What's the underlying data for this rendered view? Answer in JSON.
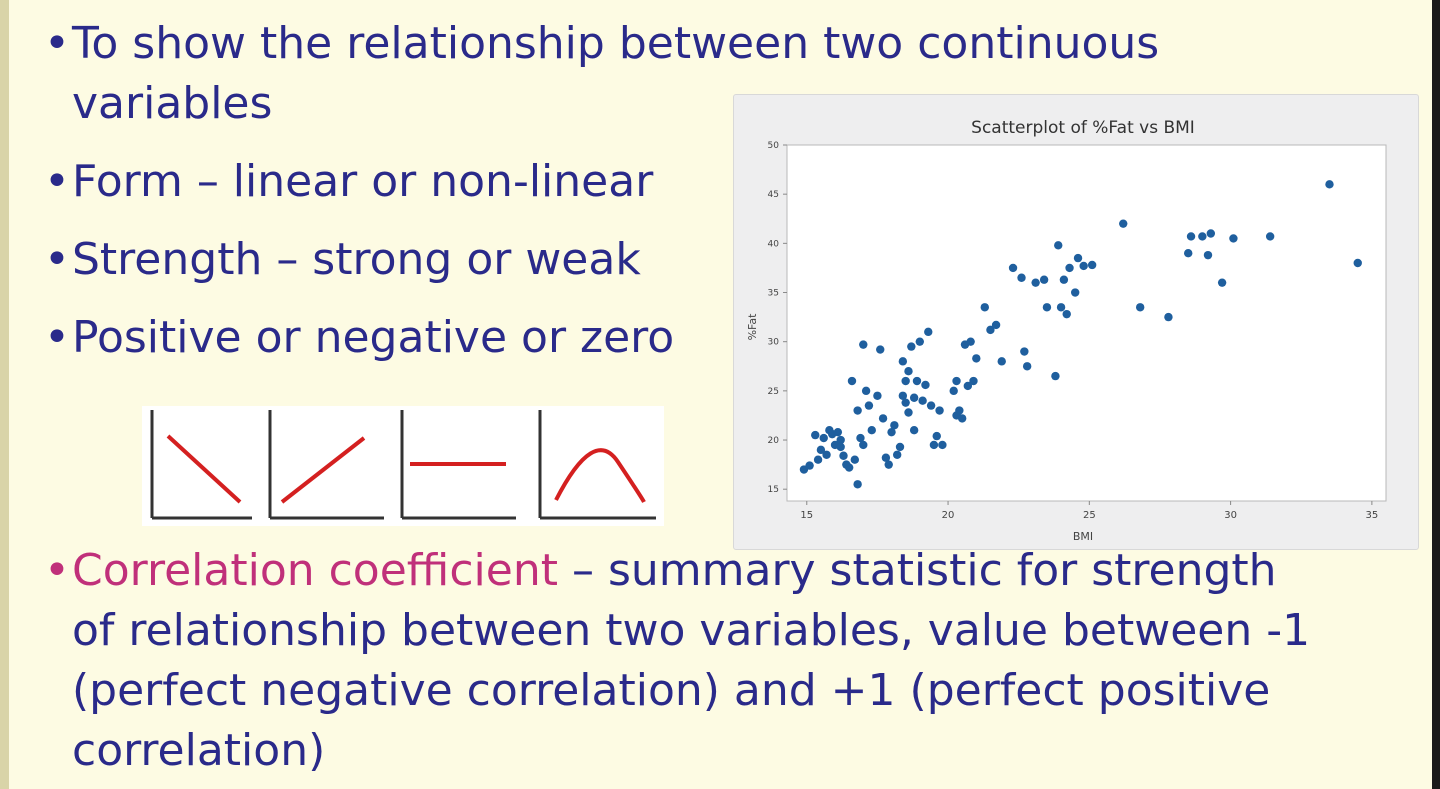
{
  "slide": {
    "bullets": [
      {
        "line1": "To show the relationship between two continuous",
        "line2": "variables"
      },
      {
        "text": "Form – linear or non-linear"
      },
      {
        "text": "Strength – strong or weak"
      },
      {
        "text": "Positive or negative or zero"
      }
    ],
    "correlation": {
      "highlight": "Correlation coefficient",
      "rest1": " – summary statistic for strength",
      "line2": "of relationship between two variables, value between -1",
      "line3": "(perfect negative correlation) and +1 (perfect positive",
      "line4": "correlation)"
    },
    "pattern_icons": [
      "negative-linear",
      "positive-linear",
      "zero-flat",
      "non-linear-curve"
    ],
    "colors": {
      "background": "#fdfbe3",
      "text": "#2a2a8a",
      "highlight": "#c0307a",
      "icon_line": "#d42020",
      "point": "#1f5f9e"
    }
  },
  "chart_data": {
    "type": "scatter",
    "title": "Scatterplot of %Fat vs BMI",
    "xlabel": "BMI",
    "ylabel": "%Fat",
    "xlim": [
      14.3,
      35.5
    ],
    "ylim": [
      13.8,
      50
    ],
    "xticks": [
      15,
      20,
      25,
      30,
      35
    ],
    "yticks": [
      15,
      20,
      25,
      30,
      35,
      40,
      45,
      50
    ],
    "grid": false,
    "x": [
      14.9,
      15.1,
      15.3,
      15.4,
      15.5,
      15.6,
      15.7,
      15.8,
      15.9,
      16.0,
      16.1,
      16.2,
      16.2,
      16.3,
      16.4,
      16.5,
      16.6,
      16.7,
      16.8,
      16.8,
      16.9,
      17.0,
      17.0,
      17.1,
      17.2,
      17.3,
      17.5,
      17.6,
      17.7,
      17.8,
      17.9,
      18.0,
      18.1,
      18.2,
      18.3,
      18.4,
      18.4,
      18.5,
      18.5,
      18.6,
      18.6,
      18.7,
      18.8,
      18.8,
      18.9,
      19.0,
      19.1,
      19.2,
      19.3,
      19.4,
      19.5,
      19.6,
      19.7,
      19.8,
      20.2,
      20.3,
      20.3,
      20.4,
      20.5,
      20.6,
      20.7,
      20.8,
      20.9,
      21.0,
      21.3,
      21.5,
      21.7,
      21.9,
      22.3,
      22.6,
      22.7,
      22.8,
      23.1,
      23.4,
      23.5,
      23.8,
      23.9,
      24.0,
      24.1,
      24.2,
      24.3,
      24.5,
      24.6,
      24.8,
      25.1,
      26.2,
      26.8,
      27.8,
      28.5,
      28.6,
      29.0,
      29.2,
      29.3,
      29.7,
      30.1,
      31.4,
      33.5,
      34.5
    ],
    "y": [
      17.0,
      17.4,
      20.5,
      18.0,
      19.0,
      20.2,
      18.5,
      21.0,
      20.6,
      19.5,
      20.8,
      20.0,
      19.3,
      18.4,
      17.5,
      17.2,
      26.0,
      18.0,
      23.0,
      15.5,
      20.2,
      29.7,
      19.5,
      25.0,
      23.5,
      21.0,
      24.5,
      29.2,
      22.2,
      18.2,
      17.5,
      20.8,
      21.5,
      18.5,
      19.3,
      28.0,
      24.5,
      26.0,
      23.8,
      27.0,
      22.8,
      29.5,
      24.3,
      21.0,
      26.0,
      30.0,
      24.0,
      25.6,
      31.0,
      23.5,
      19.5,
      20.4,
      23.0,
      19.5,
      25.0,
      22.5,
      26.0,
      23.0,
      22.2,
      29.7,
      25.5,
      30.0,
      26.0,
      28.3,
      33.5,
      31.2,
      31.7,
      28.0,
      37.5,
      36.5,
      29.0,
      27.5,
      36.0,
      36.3,
      33.5,
      26.5,
      39.8,
      33.5,
      36.3,
      32.8,
      37.5,
      35.0,
      38.5,
      37.7,
      37.8,
      42.0,
      33.5,
      32.5,
      39.0,
      40.7,
      40.7,
      38.8,
      41.0,
      36.0,
      40.5,
      40.7,
      46.0,
      38.0
    ]
  }
}
